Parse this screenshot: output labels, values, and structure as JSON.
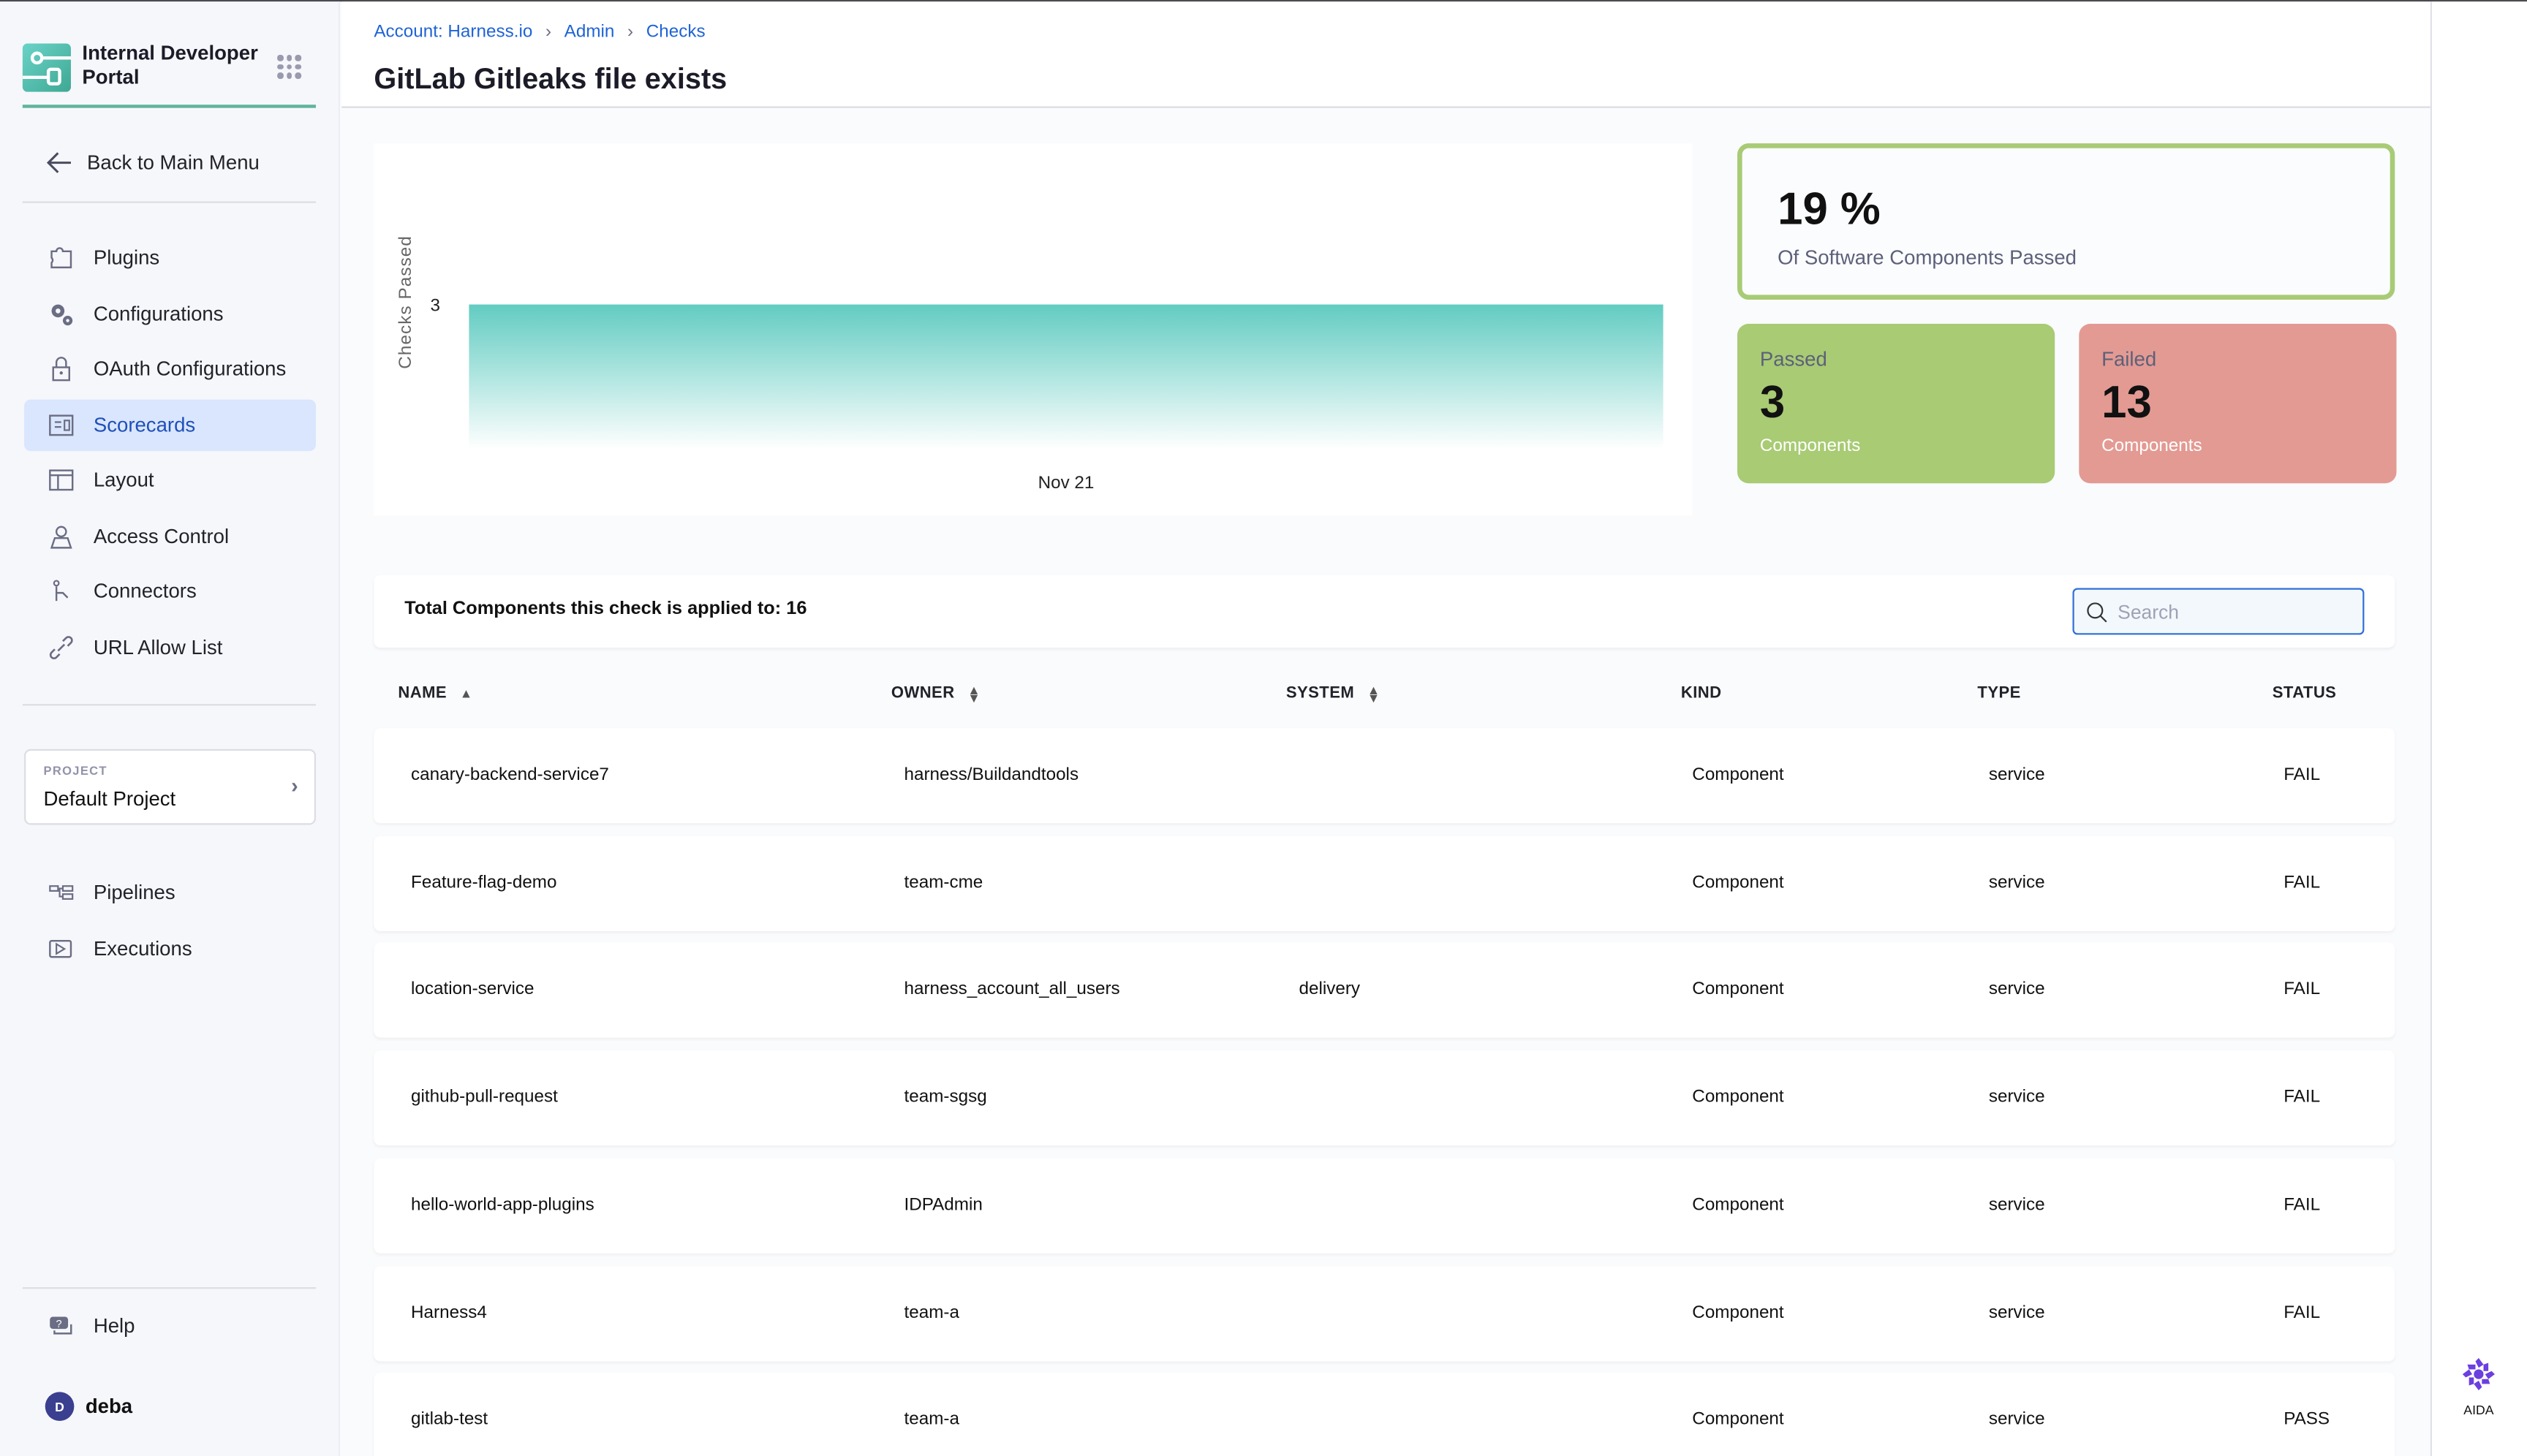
{
  "app": {
    "name": "Internal Developer Portal"
  },
  "sidebar": {
    "back_label": "Back to Main Menu",
    "items": [
      {
        "label": "Plugins",
        "icon": "puzzle-icon"
      },
      {
        "label": "Configurations",
        "icon": "gears-icon"
      },
      {
        "label": "OAuth Configurations",
        "icon": "lock-icon"
      },
      {
        "label": "Scorecards",
        "icon": "scorecard-icon",
        "active": true
      },
      {
        "label": "Layout",
        "icon": "layout-icon"
      },
      {
        "label": "Access Control",
        "icon": "user-icon"
      },
      {
        "label": "Connectors",
        "icon": "connector-icon"
      },
      {
        "label": "URL Allow List",
        "icon": "link-icon"
      }
    ],
    "project": {
      "label": "PROJECT",
      "name": "Default Project"
    },
    "project_items": [
      {
        "label": "Pipelines",
        "icon": "pipeline-icon"
      },
      {
        "label": "Executions",
        "icon": "execution-icon"
      }
    ],
    "help_label": "Help",
    "user": {
      "initial": "D",
      "name": "deba"
    }
  },
  "header": {
    "breadcrumbs": [
      "Account: Harness.io",
      "Admin",
      "Checks"
    ],
    "title": "GitLab Gitleaks file exists"
  },
  "summary": {
    "percent": "19 %",
    "percent_label": "Of Software Components Passed",
    "passed": {
      "label": "Passed",
      "value": "3",
      "unit": "Components",
      "color": "#a8cb74"
    },
    "failed": {
      "label": "Failed",
      "value": "13",
      "unit": "Components",
      "color": "#e39a93"
    }
  },
  "chart_data": {
    "type": "area",
    "x": [
      "Nov 21"
    ],
    "values": [
      3
    ],
    "ylabel": "Checks Passed",
    "yticks": [
      "3"
    ],
    "ylim": [
      0,
      3
    ],
    "color": "#62ccc2"
  },
  "table": {
    "total_label": "Total Components this check is applied to: 16",
    "search_placeholder": "Search",
    "columns": [
      "NAME",
      "OWNER",
      "SYSTEM",
      "KIND",
      "TYPE",
      "STATUS"
    ],
    "rows": [
      {
        "name": "canary-backend-service7",
        "owner": "harness/Buildandtools",
        "system": "",
        "kind": "Component",
        "type": "service",
        "status": "FAIL"
      },
      {
        "name": "Feature-flag-demo",
        "owner": "team-cme",
        "system": "",
        "kind": "Component",
        "type": "service",
        "status": "FAIL"
      },
      {
        "name": "location-service",
        "owner": "harness_account_all_users",
        "system": "delivery",
        "kind": "Component",
        "type": "service",
        "status": "FAIL"
      },
      {
        "name": "github-pull-request",
        "owner": "team-sgsg",
        "system": "",
        "kind": "Component",
        "type": "service",
        "status": "FAIL"
      },
      {
        "name": "hello-world-app-plugins",
        "owner": "IDPAdmin",
        "system": "",
        "kind": "Component",
        "type": "service",
        "status": "FAIL"
      },
      {
        "name": "Harness4",
        "owner": "team-a",
        "system": "",
        "kind": "Component",
        "type": "service",
        "status": "FAIL"
      },
      {
        "name": "gitlab-test",
        "owner": "team-a",
        "system": "",
        "kind": "Component",
        "type": "service",
        "status": "PASS"
      }
    ]
  },
  "aida": {
    "label": "AIDA"
  }
}
